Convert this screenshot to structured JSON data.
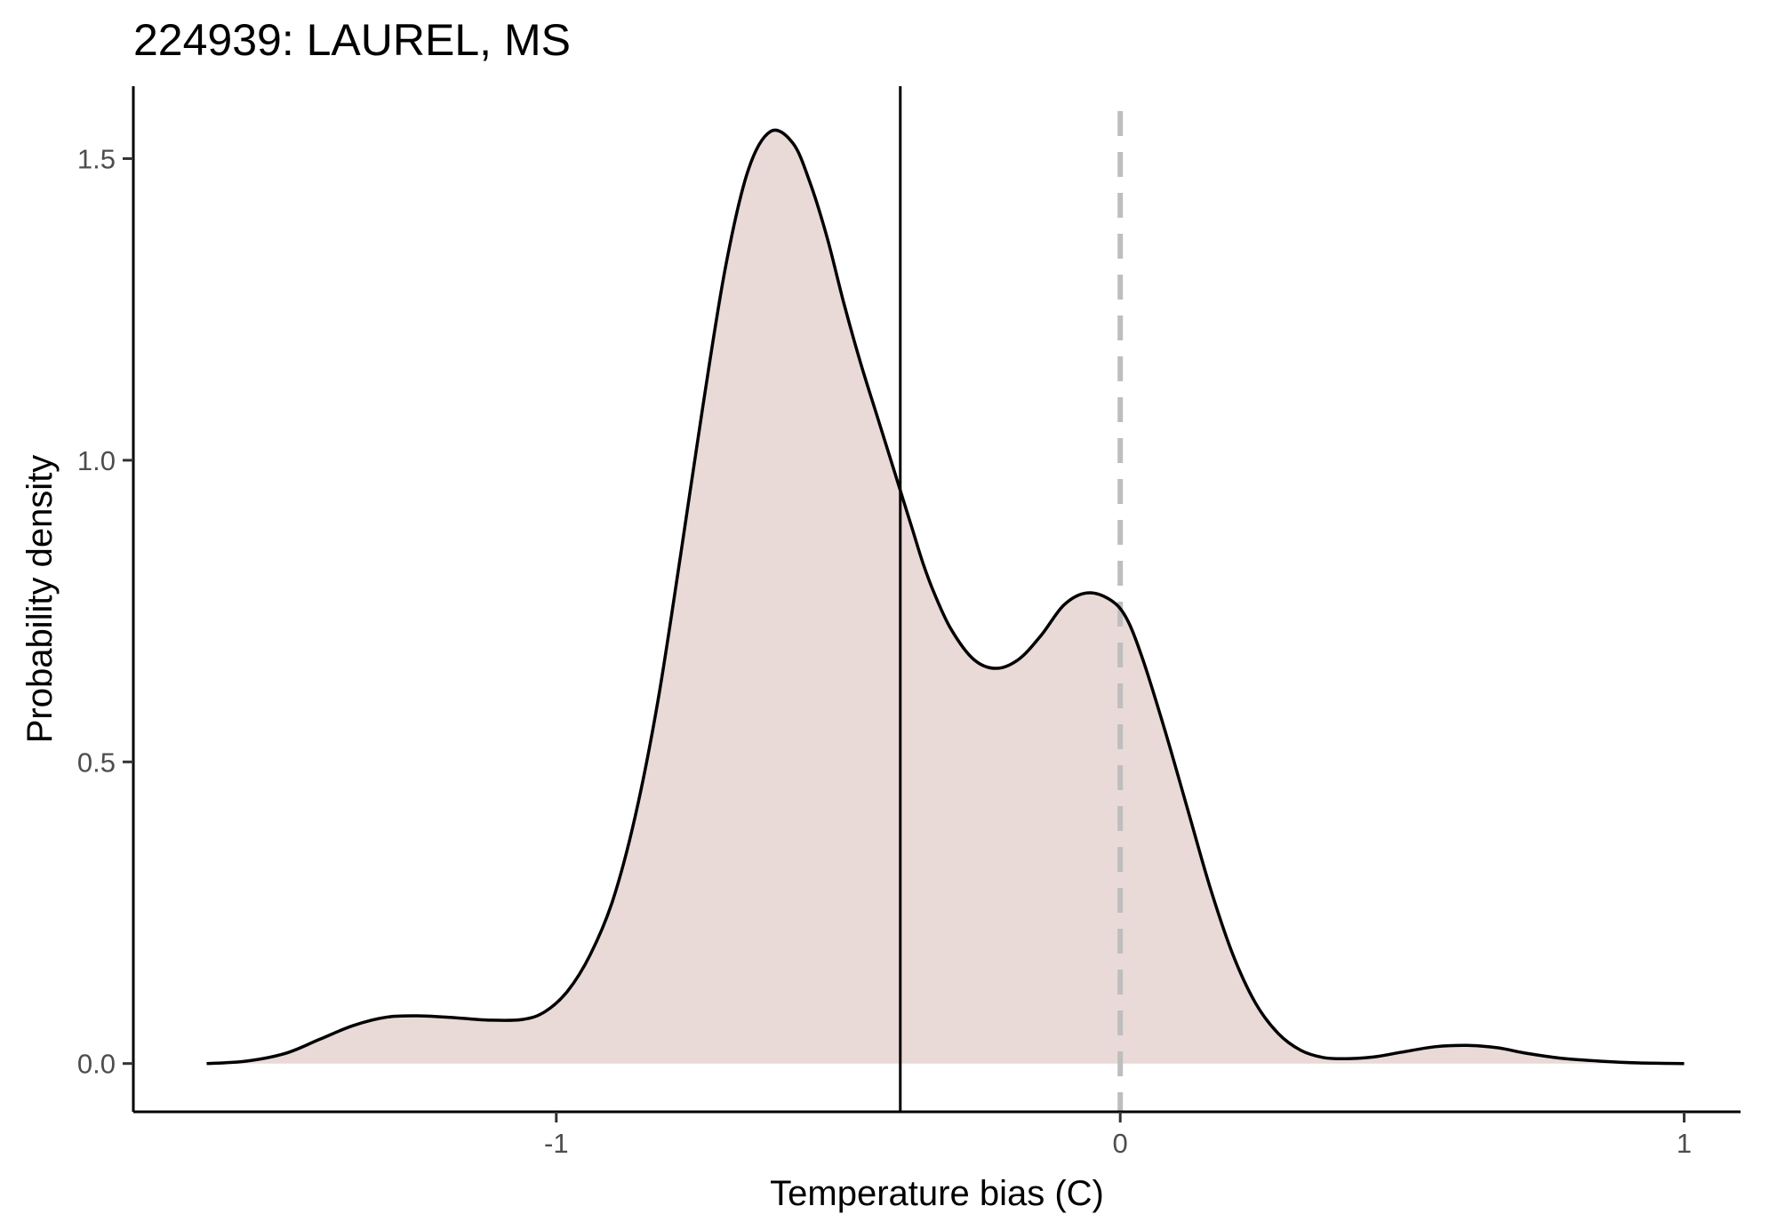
{
  "chart_data": {
    "type": "area",
    "title": "224939: LAUREL, MS",
    "xlabel": "Temperature bias (C)",
    "ylabel": "Probability density",
    "xlim": [
      -1.75,
      1.1
    ],
    "ylim": [
      -0.08,
      1.62
    ],
    "x_ticks": [
      -1,
      0,
      1
    ],
    "x_tick_labels": [
      "-1",
      "0",
      "1"
    ],
    "y_ticks": [
      0.0,
      0.5,
      1.0,
      1.5
    ],
    "y_tick_labels": [
      "0.0",
      "0.5",
      "1.0",
      "1.5"
    ],
    "grid": false,
    "legend": "none",
    "series": [
      {
        "x": [
          -1.62,
          -1.55,
          -1.48,
          -1.42,
          -1.36,
          -1.3,
          -1.24,
          -1.18,
          -1.12,
          -1.06,
          -1.02,
          -0.98,
          -0.94,
          -0.9,
          -0.86,
          -0.82,
          -0.78,
          -0.74,
          -0.7,
          -0.66,
          -0.62,
          -0.58,
          -0.55,
          -0.52,
          -0.49,
          -0.46,
          -0.43,
          -0.4,
          -0.37,
          -0.35,
          -0.33,
          -0.3,
          -0.26,
          -0.22,
          -0.18,
          -0.14,
          -0.1,
          -0.06,
          -0.02,
          0.01,
          0.04,
          0.08,
          0.12,
          0.16,
          0.2,
          0.24,
          0.28,
          0.32,
          0.36,
          0.4,
          0.45,
          0.5,
          0.56,
          0.62,
          0.67,
          0.72,
          0.78,
          0.85,
          0.92,
          1.0
        ],
        "y": [
          0.0,
          0.004,
          0.017,
          0.04,
          0.063,
          0.077,
          0.079,
          0.076,
          0.072,
          0.073,
          0.086,
          0.12,
          0.18,
          0.27,
          0.41,
          0.6,
          0.84,
          1.09,
          1.32,
          1.48,
          1.545,
          1.525,
          1.46,
          1.37,
          1.26,
          1.16,
          1.07,
          0.98,
          0.89,
          0.83,
          0.78,
          0.72,
          0.67,
          0.655,
          0.67,
          0.71,
          0.76,
          0.78,
          0.77,
          0.74,
          0.67,
          0.55,
          0.42,
          0.29,
          0.18,
          0.1,
          0.05,
          0.022,
          0.01,
          0.008,
          0.011,
          0.019,
          0.028,
          0.03,
          0.026,
          0.017,
          0.009,
          0.004,
          0.001,
          0.0
        ]
      }
    ],
    "reference_lines": [
      {
        "x": -0.39,
        "style": "solid"
      },
      {
        "x": 0.0,
        "style": "dashed"
      }
    ],
    "colors": {
      "fill": "#e9dad7",
      "curve": "#000000",
      "mean_line": "#000000",
      "zero_line": "#bebebe",
      "axis": "#000000",
      "tick_label": "#4d4d4d"
    }
  }
}
